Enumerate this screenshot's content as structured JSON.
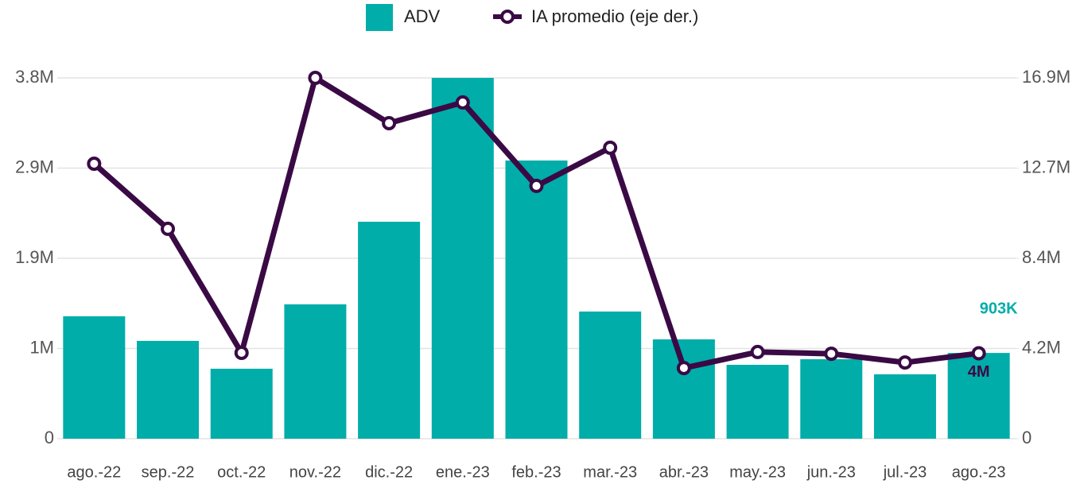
{
  "chart_data": {
    "type": "bar_line",
    "categories": [
      "ago.-22",
      "sep.-22",
      "oct.-22",
      "nov.-22",
      "dic.-22",
      "ene.-23",
      "feb.-23",
      "mar.-23",
      "abr.-23",
      "may.-23",
      "jun.-23",
      "jul.-23",
      "ago.-23"
    ],
    "series": [
      {
        "name": "ADV",
        "type": "bar",
        "color": "#00ada9",
        "values": [
          1289000,
          1030000,
          737000,
          1415000,
          2285000,
          3800000,
          2930000,
          1339000,
          1046000,
          778000,
          837000,
          678000,
          903000
        ],
        "value_labels": [
          null,
          null,
          null,
          null,
          null,
          null,
          null,
          null,
          null,
          null,
          null,
          null,
          "903K"
        ]
      },
      {
        "name": "IA promedio (eje der.)",
        "type": "line",
        "axis": "y2",
        "color": "#3a0a45",
        "values": [
          12880000,
          9830000,
          4020000,
          16900000,
          14780000,
          15750000,
          11840000,
          13630000,
          3310000,
          4060000,
          3980000,
          3570000,
          4000000
        ],
        "value_labels": [
          null,
          null,
          null,
          null,
          null,
          null,
          null,
          null,
          null,
          null,
          null,
          null,
          "4M"
        ]
      }
    ],
    "ylim": [
      0,
      3800000
    ],
    "yticks": [
      0,
      {
        "value": 950000,
        "label": "1M"
      },
      {
        "value": 1900000,
        "label": "1.9M"
      },
      {
        "value": 2850000,
        "label": "2.9M"
      },
      {
        "value": 3800000,
        "label": "3.8M"
      }
    ],
    "y2lim": [
      0,
      16900000
    ],
    "y2ticks": [
      0,
      {
        "value": 4225000,
        "label": "4.2M"
      },
      {
        "value": 8450000,
        "label": "8.4M"
      },
      {
        "value": 12675000,
        "label": "12.7M"
      },
      {
        "value": 16900000,
        "label": "16.9M"
      }
    ],
    "grid": true,
    "legend": "top"
  }
}
